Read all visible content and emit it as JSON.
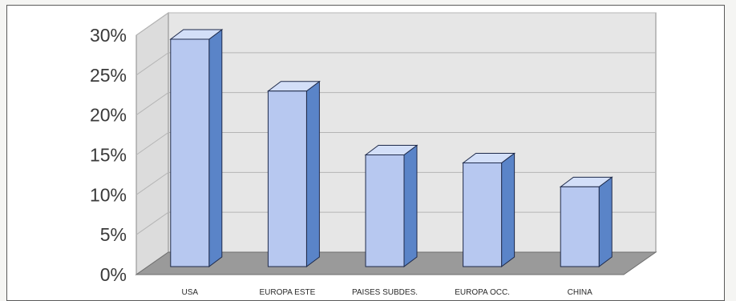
{
  "chart_data": {
    "type": "bar",
    "style": "3d-column",
    "categories": [
      "USA",
      "EUROPA ESTE",
      "PAISES SUBDES.",
      "EUROPA OCC.",
      "CHINA"
    ],
    "values": [
      29.5,
      23,
      15,
      14,
      11
    ],
    "value_unit": "%",
    "yticks": [
      "0%",
      "5%",
      "10%",
      "15%",
      "20%",
      "25%",
      "30%"
    ],
    "ylim": [
      0,
      30
    ],
    "grid": true,
    "legend": "none",
    "title": "",
    "xlabel": "",
    "ylabel": "",
    "colors": {
      "bar_front": "#b7c8f0",
      "bar_side": "#5a84c8",
      "bar_top": "#d3dff8",
      "bar_outline": "#1e2a4a",
      "wall": "#e6e6e6",
      "floor": "#9a9a9a",
      "grid": "#b5b5b5"
    }
  }
}
